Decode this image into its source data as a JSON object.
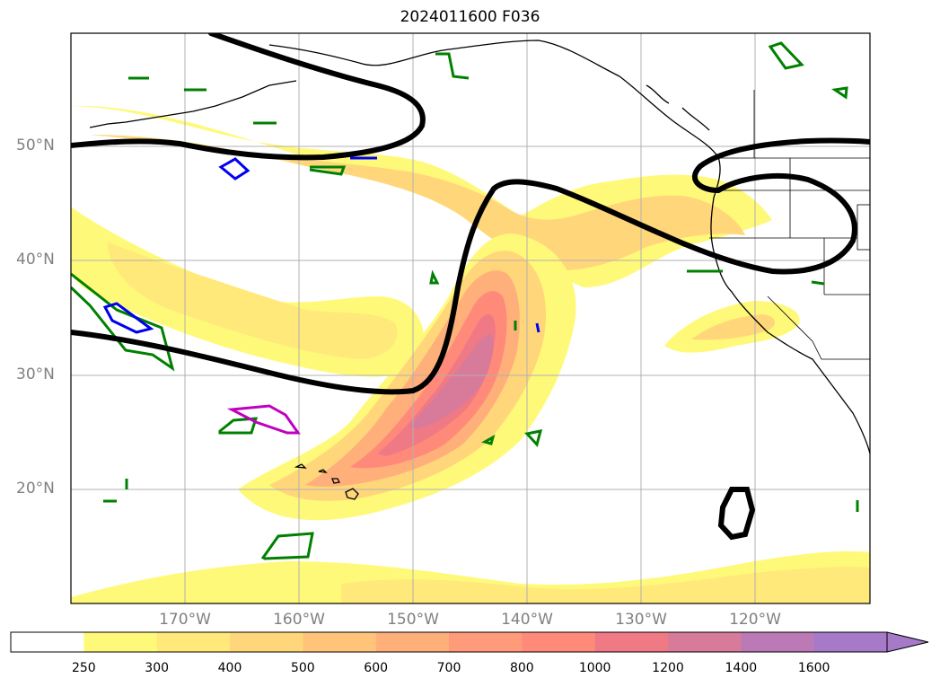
{
  "title": "2024011600 F036",
  "lat_labels": [
    "50°N",
    "40°N",
    "30°N",
    "20°N"
  ],
  "lon_labels": [
    "170°W",
    "160°W",
    "150°W",
    "140°W",
    "130°W",
    "120°W"
  ],
  "colorbar": {
    "ticks": [
      "250",
      "300",
      "400",
      "500",
      "600",
      "700",
      "800",
      "1000",
      "1200",
      "1400",
      "1600"
    ],
    "colors": [
      "#ffffff",
      "#fff97a",
      "#ffe97a",
      "#ffd77a",
      "#ffc47a",
      "#ffb07a",
      "#ff9a7a",
      "#ff8a7a",
      "#ef7a85",
      "#d87a9a",
      "#bb7ab6",
      "#a67ac8"
    ],
    "extend": "max"
  },
  "colors": {
    "contour_black": "#000000",
    "contour_green": "#008000",
    "contour_blue": "#0000ee",
    "contour_magenta": "#c000c0",
    "gridline": "#b0b0b0"
  }
}
